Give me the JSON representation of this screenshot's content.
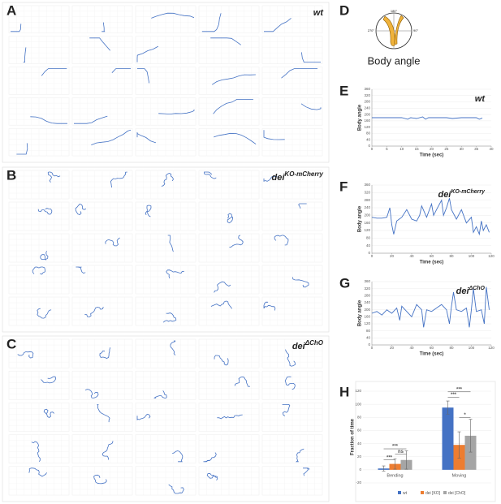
{
  "trajectory_panels": [
    {
      "label": "A",
      "genotype": "wt"
    },
    {
      "label": "B",
      "genotype": "dei",
      "superscript": "KO-mCherry"
    },
    {
      "label": "C",
      "genotype": "dei",
      "superscript": "ΔChO"
    }
  ],
  "body_angle": {
    "label": "D",
    "caption": "Body angle",
    "angles": [
      "180°",
      "270°",
      "90°"
    ]
  },
  "chart_data": [
    {
      "type": "line",
      "panel": "E",
      "title": "wt",
      "ylabel": "Body angle",
      "xlabel": "Time (sec)",
      "x": [
        0,
        5,
        10,
        12,
        13,
        15,
        17,
        18,
        19,
        20,
        25,
        27,
        30,
        35,
        36,
        37
      ],
      "series": [
        {
          "name": "Body angle",
          "color": "#4472c4",
          "values": [
            180,
            180,
            180,
            170,
            180,
            175,
            185,
            170,
            180,
            180,
            180,
            175,
            180,
            180,
            170,
            178
          ]
        }
      ],
      "xlim": [
        0,
        40
      ],
      "xticks": [
        0,
        5,
        10,
        15,
        20,
        25,
        30,
        35,
        40
      ],
      "ylim": [
        0,
        360
      ],
      "yticks": [
        0,
        40,
        80,
        120,
        160,
        200,
        240,
        280,
        320,
        360
      ],
      "grid": true
    },
    {
      "type": "line",
      "panel": "F",
      "title": "dei",
      "title_sup": "KO-mCherry",
      "ylabel": "Body angle",
      "xlabel": "Time (sec)",
      "x": [
        0,
        5,
        10,
        15,
        18,
        20,
        22,
        25,
        30,
        35,
        40,
        45,
        48,
        50,
        55,
        60,
        62,
        65,
        70,
        72,
        75,
        78,
        80,
        85,
        90,
        95,
        100,
        102,
        105,
        108,
        110,
        112,
        115,
        118
      ],
      "series": [
        {
          "name": "Body angle",
          "color": "#4472c4",
          "values": [
            190,
            185,
            185,
            190,
            240,
            150,
            100,
            170,
            190,
            230,
            180,
            170,
            200,
            250,
            190,
            260,
            200,
            230,
            280,
            200,
            240,
            290,
            230,
            180,
            230,
            160,
            190,
            110,
            140,
            100,
            170,
            120,
            150,
            110
          ]
        }
      ],
      "xlim": [
        0,
        120
      ],
      "xticks": [
        0,
        20,
        40,
        60,
        80,
        100,
        120
      ],
      "ylim": [
        0,
        360
      ],
      "yticks": [
        0,
        40,
        80,
        120,
        160,
        200,
        240,
        280,
        320,
        360
      ],
      "grid": true
    },
    {
      "type": "line",
      "panel": "G",
      "title": "dei",
      "title_sup": "ΔChO",
      "ylabel": "Body angle",
      "xlabel": "Time (sec)",
      "x": [
        0,
        5,
        10,
        15,
        20,
        25,
        28,
        30,
        35,
        40,
        45,
        50,
        52,
        55,
        60,
        65,
        70,
        75,
        78,
        80,
        82,
        85,
        90,
        95,
        98,
        100,
        102,
        105,
        110,
        113,
        115,
        118
      ],
      "series": [
        {
          "name": "Body angle",
          "color": "#4472c4",
          "values": [
            180,
            190,
            170,
            200,
            180,
            210,
            140,
            220,
            190,
            160,
            230,
            200,
            100,
            200,
            190,
            210,
            230,
            200,
            120,
            220,
            300,
            200,
            190,
            210,
            100,
            200,
            320,
            190,
            200,
            120,
            330,
            200
          ]
        }
      ],
      "xlim": [
        0,
        120
      ],
      "xticks": [
        0,
        20,
        40,
        60,
        80,
        100,
        120
      ],
      "ylim": [
        0,
        360
      ],
      "yticks": [
        0,
        40,
        80,
        120,
        160,
        200,
        240,
        280,
        320,
        360
      ],
      "grid": true
    },
    {
      "type": "bar",
      "panel": "H",
      "ylabel": "Fraction of time",
      "categories": [
        "Bending",
        "Moving"
      ],
      "series": [
        {
          "name": "wt",
          "color": "#4472c4",
          "values": [
            2,
            95
          ],
          "errors": [
            4,
            10
          ]
        },
        {
          "name": "dei [KO]",
          "color": "#ed7d31",
          "values": [
            9,
            38
          ],
          "errors": [
            8,
            20
          ]
        },
        {
          "name": "dei [ChO]",
          "color": "#a5a5a5",
          "values": [
            15,
            52
          ],
          "errors": [
            14,
            25
          ]
        }
      ],
      "ylim": [
        -20,
        120
      ],
      "yticks": [
        -20,
        0,
        20,
        40,
        60,
        80,
        100,
        120
      ],
      "grid": true,
      "annotations": [
        "***",
        "ns",
        "***",
        "***",
        "***",
        "*"
      ]
    }
  ]
}
